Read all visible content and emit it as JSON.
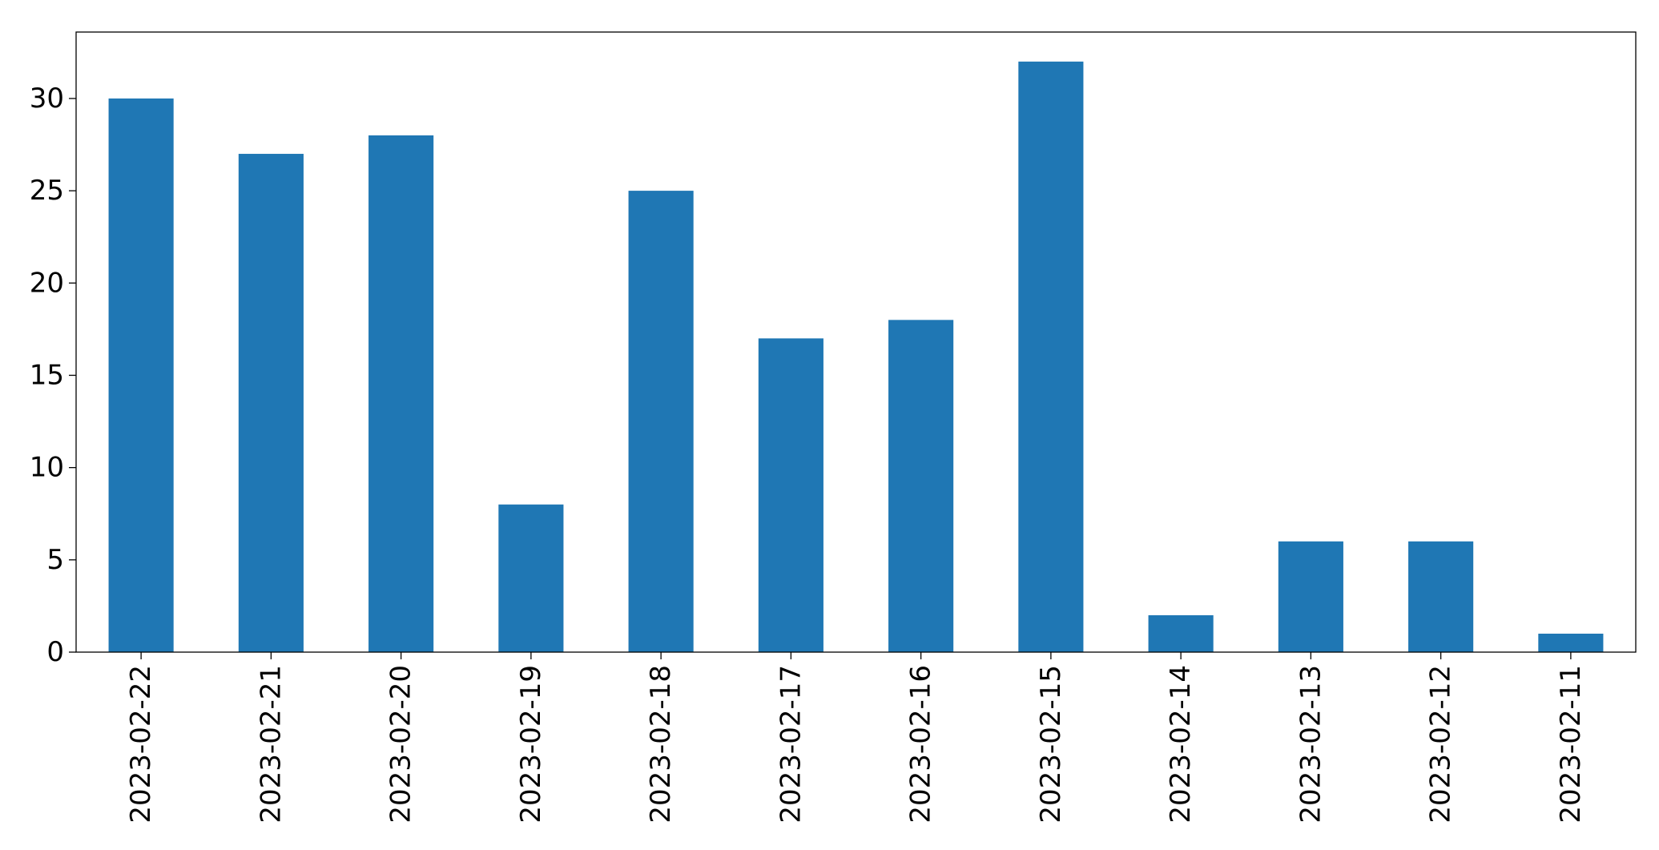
{
  "chart_data": {
    "type": "bar",
    "categories": [
      "2023-02-22",
      "2023-02-21",
      "2023-02-20",
      "2023-02-19",
      "2023-02-18",
      "2023-02-17",
      "2023-02-16",
      "2023-02-15",
      "2023-02-14",
      "2023-02-13",
      "2023-02-12",
      "2023-02-11"
    ],
    "values": [
      30,
      27,
      28,
      8,
      25,
      17,
      18,
      32,
      2,
      6,
      6,
      1
    ],
    "ylim": [
      0,
      33.6
    ],
    "yticks": [
      0,
      5,
      10,
      15,
      20,
      25,
      30
    ],
    "grid": false,
    "legend": "none",
    "bar_color": "#1f77b4"
  }
}
